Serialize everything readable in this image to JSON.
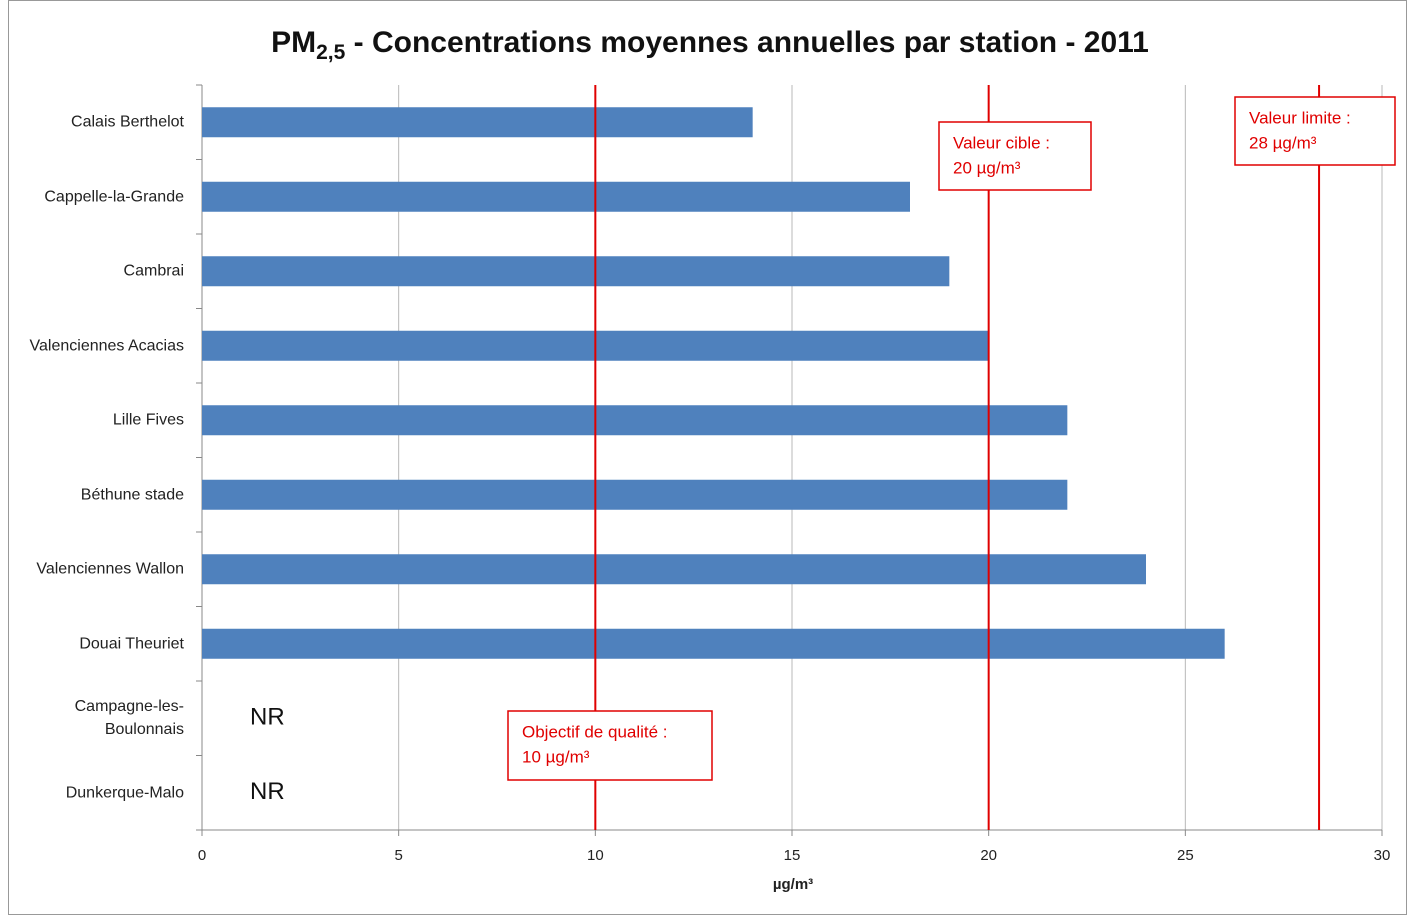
{
  "chart_data": {
    "type": "bar",
    "orientation": "horizontal",
    "title": {
      "main": "PM",
      "subscript": "2,5",
      "rest": " - Concentrations moyennes annuelles par station - 2011"
    },
    "categories": [
      "Calais Berthelot",
      "Cappelle-la-Grande",
      "Cambrai",
      "Valenciennes Acacias",
      "Lille Fives",
      "Béthune stade",
      "Valenciennes Wallon",
      "Douai Theuriet",
      "Campagne-les-Boulonnais",
      "Dunkerque-Malo"
    ],
    "values": [
      14,
      18,
      19,
      20,
      22,
      22,
      24,
      26,
      null,
      null
    ],
    "value_labels": [
      null,
      null,
      null,
      null,
      null,
      null,
      null,
      null,
      "NR",
      "NR"
    ],
    "color": "#4f81bd",
    "xlabel": "µg/m³",
    "xlim": [
      0,
      30
    ],
    "xticks": [
      0,
      5,
      10,
      15,
      20,
      25,
      30
    ],
    "grid": true,
    "reference_lines": [
      {
        "value": 10,
        "color": "#e00000",
        "label": [
          "Objectif de qualité  :",
          "10 µg/m³"
        ]
      },
      {
        "value": 20,
        "color": "#e00000",
        "label": [
          "Valeur cible  :",
          "20 µg/m³"
        ]
      },
      {
        "value": 28.4,
        "color": "#e00000",
        "label": [
          "Valeur limite  :",
          "28 µg/m³"
        ]
      }
    ]
  }
}
